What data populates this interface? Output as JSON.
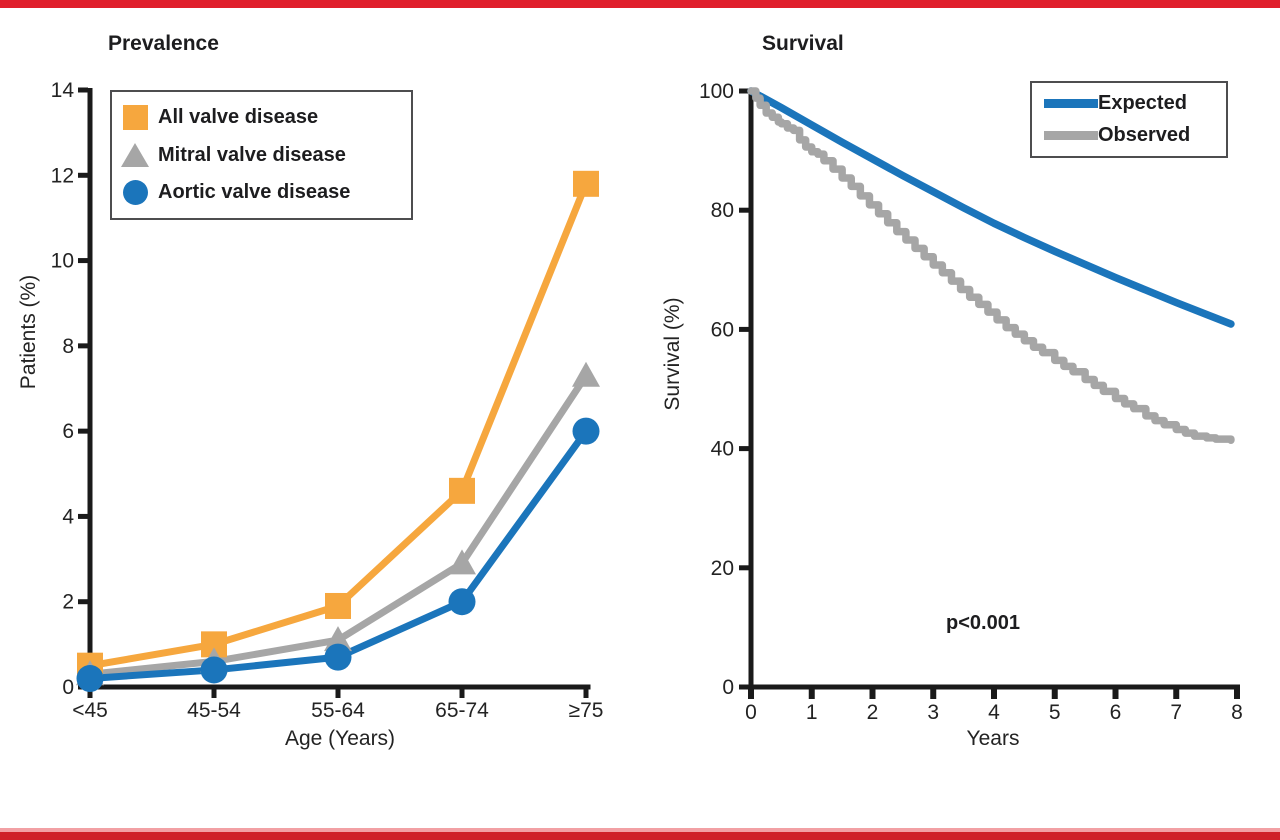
{
  "page": {
    "top_bar_color": "#e01f2c",
    "bottom_bar_color": "#cf2028",
    "bottom_bar_accent": "#f2a0a4",
    "axis_color": "#1a1a1a",
    "text_color": "#1d1d1f"
  },
  "chart_data": [
    {
      "type": "line",
      "title": "Prevalence",
      "xlabel": "Age (Years)",
      "ylabel": "Patients (%)",
      "categories": [
        "<45",
        "45-54",
        "55-64",
        "65-74",
        "≥75"
      ],
      "y_ticks": [
        0,
        2,
        4,
        6,
        8,
        10,
        12,
        14
      ],
      "ylim": [
        0,
        14
      ],
      "grid": false,
      "legend_position": "top-left",
      "series": [
        {
          "name": "All valve disease",
          "marker": "square",
          "color": "#f6a73e",
          "values": [
            0.5,
            1.0,
            1.9,
            4.6,
            11.8
          ]
        },
        {
          "name": "Mitral valve disease",
          "marker": "triangle",
          "color": "#a6a6a6",
          "values": [
            0.3,
            0.6,
            1.1,
            2.9,
            7.3
          ]
        },
        {
          "name": "Aortic valve disease",
          "marker": "circle",
          "color": "#1b75bb",
          "values": [
            0.2,
            0.4,
            0.7,
            2.0,
            6.0
          ]
        }
      ]
    },
    {
      "type": "line",
      "title": "Survival",
      "xlabel": "Years",
      "ylabel": "Survival (%)",
      "x_ticks": [
        0,
        1,
        2,
        3,
        4,
        5,
        6,
        7,
        8
      ],
      "y_ticks": [
        0,
        20,
        40,
        60,
        80,
        100
      ],
      "xlim": [
        0,
        8
      ],
      "ylim": [
        0,
        100
      ],
      "grid": false,
      "legend_position": "top-right",
      "annotation": "p<0.001",
      "series": [
        {
          "name": "Expected",
          "color": "#1b75bb",
          "style": "smooth",
          "x": [
            0,
            0.5,
            1,
            1.5,
            2,
            2.5,
            3,
            3.5,
            4,
            4.5,
            5,
            5.5,
            6,
            6.5,
            7,
            7.5,
            7.9
          ],
          "values": [
            100,
            97.2,
            94.3,
            91.4,
            88.6,
            85.8,
            83.1,
            80.4,
            77.8,
            75.4,
            73.1,
            70.9,
            68.7,
            66.6,
            64.5,
            62.5,
            60.9
          ]
        },
        {
          "name": "Observed",
          "color": "#a6a6a6",
          "style": "step",
          "x": [
            0,
            0.08,
            0.15,
            0.25,
            0.35,
            0.45,
            0.5,
            0.6,
            0.7,
            0.8,
            0.9,
            1.0,
            1.1,
            1.2,
            1.35,
            1.5,
            1.65,
            1.8,
            1.95,
            2.1,
            2.25,
            2.4,
            2.55,
            2.7,
            2.85,
            3.0,
            3.15,
            3.3,
            3.45,
            3.6,
            3.75,
            3.9,
            4.05,
            4.2,
            4.35,
            4.5,
            4.65,
            4.8,
            5.0,
            5.15,
            5.3,
            5.5,
            5.65,
            5.8,
            6.0,
            6.15,
            6.3,
            6.5,
            6.65,
            6.8,
            7.0,
            7.15,
            7.3,
            7.5,
            7.65,
            7.9
          ],
          "values": [
            100,
            98.8,
            97.6,
            96.3,
            95.6,
            94.8,
            94.5,
            93.8,
            93.4,
            91.8,
            90.6,
            89.8,
            89.4,
            88.3,
            86.9,
            85.4,
            84.0,
            82.4,
            80.9,
            79.4,
            77.9,
            76.4,
            75.0,
            73.6,
            72.2,
            70.8,
            69.5,
            68.1,
            66.7,
            65.4,
            64.2,
            62.9,
            61.6,
            60.3,
            59.2,
            58.1,
            57.0,
            56.1,
            54.8,
            53.8,
            52.9,
            51.6,
            50.6,
            49.6,
            48.4,
            47.5,
            46.7,
            45.5,
            44.7,
            44.0,
            43.2,
            42.6,
            42.1,
            41.8,
            41.6,
            41.4
          ]
        }
      ]
    }
  ]
}
